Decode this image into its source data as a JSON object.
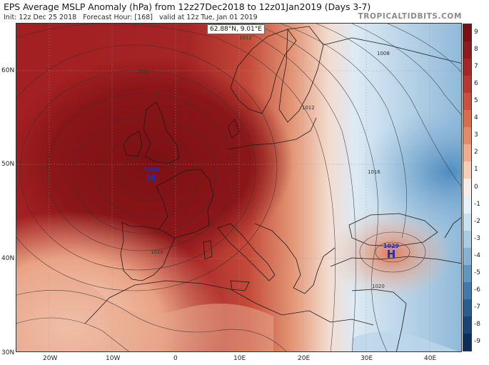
{
  "header": {
    "title": "EPS Average MSLP Anomaly (hPa) from 12z27Dec2018 to 12z01Jan2019 (Days 3-7)",
    "init": "Init: 12z Dec 25 2018",
    "forecast_hour": "Forecast Hour: [168]",
    "valid": "valid at 12z Tue, Jan 01 2019",
    "brand": "TROPICALTIDBITS.COM"
  },
  "map": {
    "cursor_readout": "62.88°N, 9.01°E",
    "lat_labels": [
      "60N",
      "50N",
      "40N",
      "30N"
    ],
    "lon_labels": [
      "20W",
      "10W",
      "0",
      "10E",
      "20E",
      "30E",
      "40E"
    ],
    "highs": [
      {
        "symbol": "H",
        "value": "1034"
      },
      {
        "symbol": "H",
        "value": "1029"
      }
    ],
    "isobar_labels": [
      "1020",
      "1012",
      "1008",
      "1016",
      "1020",
      "1020",
      "1012"
    ]
  },
  "colorbar": {
    "labels": [
      "9",
      "8",
      "7",
      "6",
      "5",
      "4",
      "3",
      "2",
      "1",
      "0",
      "-1",
      "-2",
      "-3",
      "-4",
      "-5",
      "-6",
      "-7",
      "-8",
      "-9"
    ],
    "colors": [
      "#7a0f14",
      "#8f1a1d",
      "#a52625",
      "#b8382f",
      "#c9513c",
      "#d96c4c",
      "#e58a66",
      "#efab8a",
      "#f6ccb3",
      "#f7ece6",
      "#e6f0f7",
      "#c9e0ef",
      "#a7cbe3",
      "#84b3d4",
      "#5f97c1",
      "#3f7aac",
      "#265e93",
      "#17447a",
      "#0b2e5e"
    ]
  }
}
